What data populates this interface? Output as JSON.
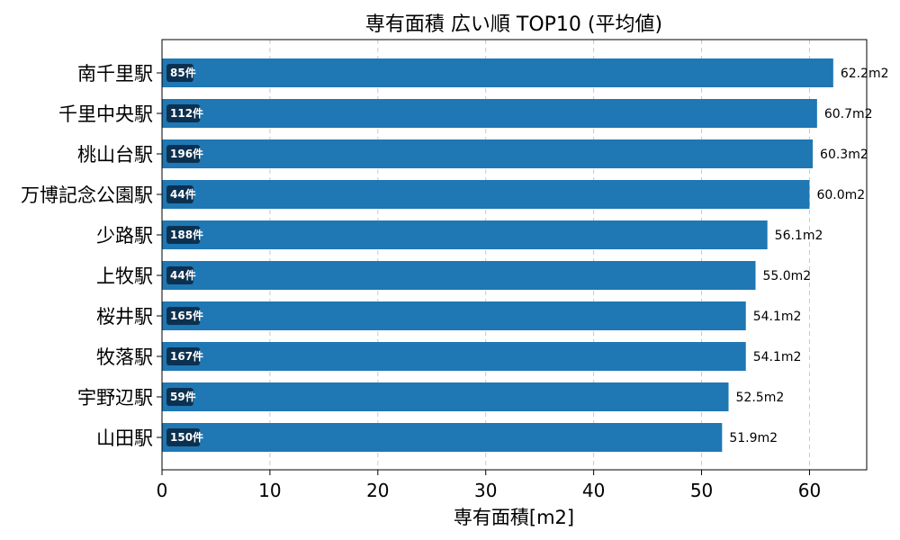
{
  "chart_data": {
    "type": "bar",
    "orientation": "horizontal",
    "title": "専有面積 広い順 TOP10 (平均値)",
    "xlabel": "専有面積[m2]",
    "ylabel": "",
    "xlim": [
      0,
      65.3
    ],
    "xticks": [
      0,
      10,
      20,
      30,
      40,
      50,
      60
    ],
    "grid": "x-dashed",
    "bar_color": "#1f77b4",
    "badge_color": "#0c3150",
    "categories": [
      "南千里駅",
      "千里中央駅",
      "桃山台駅",
      "万博記念公園駅",
      "少路駅",
      "上牧駅",
      "桜井駅",
      "牧落駅",
      "宇野辺駅",
      "山田駅"
    ],
    "values": [
      62.2,
      60.7,
      60.3,
      60.0,
      56.1,
      55.0,
      54.1,
      54.1,
      52.5,
      51.9
    ],
    "value_labels": [
      "62.2m2",
      "60.7m2",
      "60.3m2",
      "60.0m2",
      "56.1m2",
      "55.0m2",
      "54.1m2",
      "54.1m2",
      "52.5m2",
      "51.9m2"
    ],
    "count_labels": [
      "85件",
      "112件",
      "196件",
      "44件",
      "188件",
      "44件",
      "165件",
      "167件",
      "59件",
      "150件"
    ]
  }
}
